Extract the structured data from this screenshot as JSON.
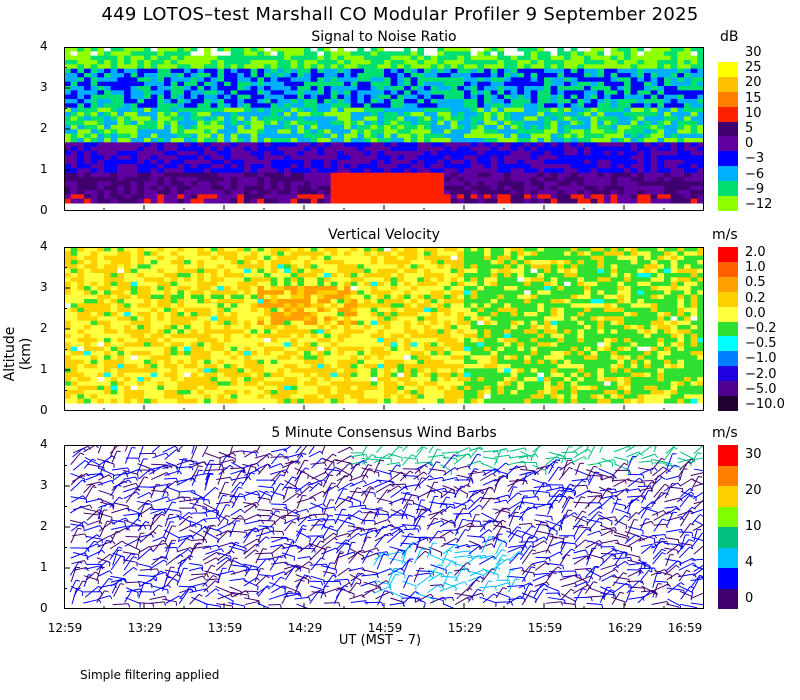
{
  "title": "449 LOTOS–test Marshall CO Modular Profiler  9 September 2025",
  "y_axis_label": "Altitude (km)",
  "x_axis_title": "UT  (MST – 7)",
  "footnote": "Simple filtering applied",
  "time_labels": [
    "12:59",
    "13:29",
    "13:59",
    "14:29",
    "14:59",
    "15:29",
    "15:59",
    "16:29",
    "16:59"
  ],
  "chart_data": [
    {
      "type": "heatmap",
      "title": "Signal to Noise Ratio",
      "unit": "dB",
      "ylim": [
        0,
        4
      ],
      "yticks": [
        "0",
        "1",
        "2",
        "3",
        "4"
      ],
      "colorbar": {
        "labels": [
          "30",
          "25",
          "20",
          "15",
          "10",
          "5",
          "0",
          "−3",
          "−6",
          "−9",
          "−12"
        ],
        "colors": [
          "#ffffff",
          "#ffff00",
          "#ffc000",
          "#ff8000",
          "#ff2000",
          "#400070",
          "#6000a0",
          "#0000ff",
          "#00b0ff",
          "#00e070",
          "#90ff00"
        ]
      }
    },
    {
      "type": "heatmap",
      "title": "Vertical Velocity",
      "unit": "m/s",
      "ylim": [
        0,
        4
      ],
      "yticks": [
        "0",
        "1",
        "2",
        "3",
        "4"
      ],
      "colorbar": {
        "labels": [
          "2.0",
          "1.0",
          "0.5",
          "0.2",
          "0.0",
          "−0.2",
          "−0.5",
          "−1.0",
          "−2.0",
          "−5.0",
          "−10.0"
        ],
        "colors": [
          "#ff0000",
          "#ff6000",
          "#ffa000",
          "#ffd000",
          "#ffff40",
          "#30e030",
          "#00ffff",
          "#0080ff",
          "#2000e0",
          "#500090",
          "#200030"
        ]
      }
    },
    {
      "type": "scatter",
      "title": "5 Minute Consensus Wind Barbs",
      "unit": "m/s",
      "ylim": [
        0,
        4
      ],
      "yticks": [
        "0",
        "1",
        "2",
        "3",
        "4"
      ],
      "colorbar": {
        "labels": [
          "30",
          "20",
          "10",
          "4",
          "0"
        ],
        "colors": [
          "#ff0000",
          "#ff8000",
          "#ffd000",
          "#80ff00",
          "#00c080",
          "#00c0ff",
          "#0000ff",
          "#400070"
        ]
      }
    }
  ]
}
